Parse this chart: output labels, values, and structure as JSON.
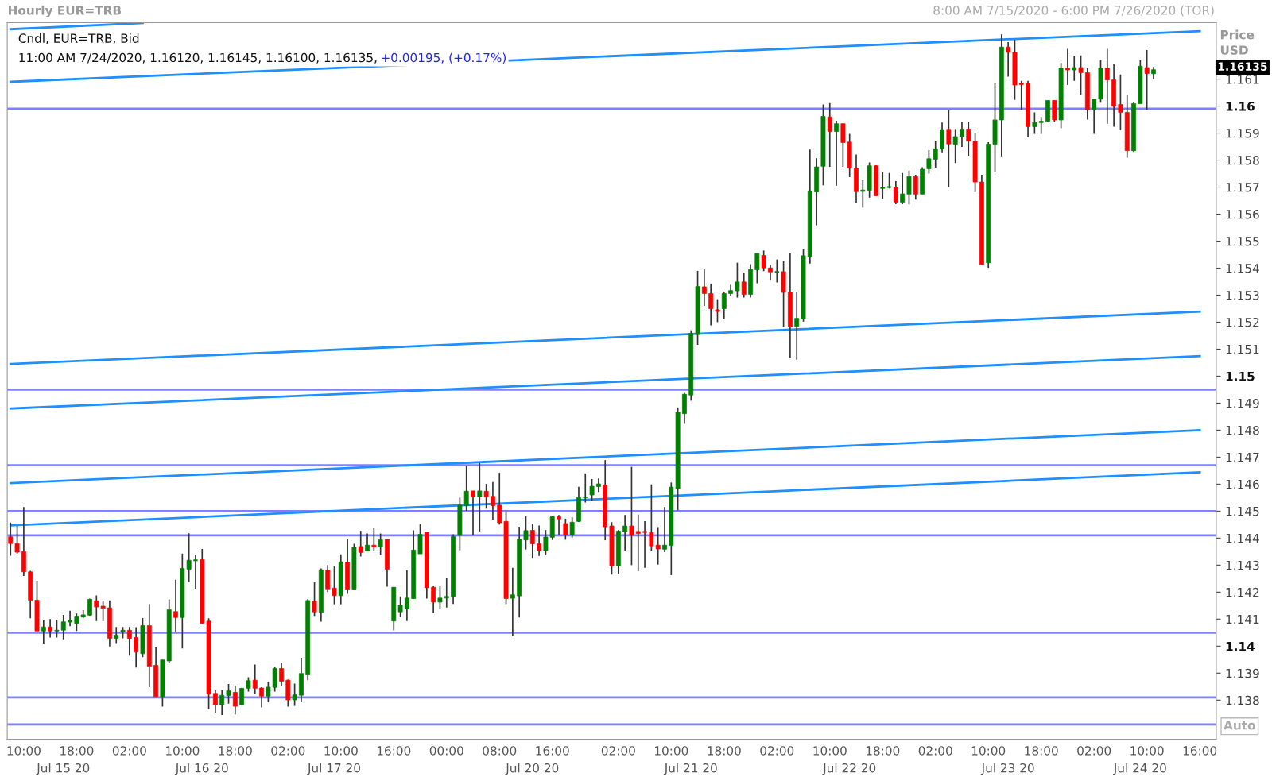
{
  "chart_data": {
    "type": "candlestick",
    "title": "Hourly EUR=TRB",
    "subtitle": "8:00 AM 7/15/2020 - 6:00 PM 7/26/2020 (TOR)",
    "ylabel": "Price\nUSD",
    "categories": [
      null,
      null,
      "10:00",
      null,
      null,
      null,
      null,
      null,
      "\nJul 15 20",
      null,
      "18:00",
      null,
      null,
      null,
      null,
      null,
      null,
      null,
      "02:00",
      null,
      null,
      null,
      null,
      null,
      null,
      null,
      "10:00",
      null,
      null,
      "\nJul 16 20",
      null,
      null,
      null,
      null,
      "18:00",
      null,
      null,
      null,
      null,
      null,
      null,
      null,
      "02:00",
      null,
      null,
      null,
      null,
      null,
      null,
      "\nJul 17 20",
      "10:00",
      null,
      null,
      null,
      null,
      null,
      null,
      null,
      "16:00",
      null,
      null,
      null,
      null,
      null,
      null,
      null,
      "00:00",
      null,
      null,
      null,
      null,
      null,
      null,
      null,
      "08:00",
      null,
      null,
      null,
      null,
      "\nJul 20 20",
      null,
      null,
      "16:00",
      null,
      null,
      null,
      null,
      null,
      null,
      null,
      null,
      null,
      "02:00",
      null,
      null,
      null,
      null,
      null,
      null,
      null,
      "10:00",
      null,
      null,
      "\nJul 21 20",
      null,
      null,
      null,
      null,
      "18:00",
      null,
      null,
      null,
      null,
      null,
      null,
      null,
      "02:00",
      null,
      null,
      null,
      null,
      null,
      null,
      null,
      "10:00",
      null,
      null,
      "\nJul 22 20",
      null,
      null,
      null,
      null,
      "18:00",
      null,
      null,
      null,
      null,
      null,
      null,
      null,
      "02:00",
      null,
      null,
      null,
      null,
      null,
      null,
      null,
      "10:00",
      null,
      null,
      "\nJul 23 20",
      null,
      null,
      null,
      null,
      "18:00",
      null,
      null,
      null,
      null,
      null,
      null,
      null,
      "02:00",
      null,
      null,
      null,
      null,
      null,
      null,
      "\nJul 24 20",
      "10:00",
      null,
      null,
      null,
      null,
      null,
      null,
      null,
      "16:00"
    ],
    "ohlc": [
      [
        1.14405,
        1.14458,
        1.14335,
        1.1438
      ],
      [
        1.1438,
        1.14446,
        1.14343,
        1.14348
      ],
      [
        1.1435,
        1.14515,
        1.1426,
        1.14275
      ],
      [
        1.14275,
        1.14279,
        1.14103,
        1.1417
      ],
      [
        1.1417,
        1.14242,
        1.14056,
        1.14056
      ],
      [
        1.14056,
        1.14095,
        1.1401,
        1.14071
      ],
      [
        1.14071,
        1.141,
        1.14032,
        1.14056
      ],
      [
        1.14056,
        1.14095,
        1.14032,
        1.14059
      ],
      [
        1.14059,
        1.14116,
        1.14025,
        1.1409
      ],
      [
        1.14089,
        1.14131,
        1.14074,
        1.14096
      ],
      [
        1.14084,
        1.14121,
        1.14056,
        1.14111
      ],
      [
        1.14108,
        1.14133,
        1.14103,
        1.14116
      ],
      [
        1.14115,
        1.14176,
        1.14113,
        1.14173
      ],
      [
        1.14168,
        1.14188,
        1.14093,
        1.14145
      ],
      [
        1.14148,
        1.14168,
        1.14093,
        1.1414
      ],
      [
        1.14142,
        1.14169,
        1.13999,
        1.14029
      ],
      [
        1.14029,
        1.14071,
        1.14011,
        1.14041
      ],
      [
        1.14054,
        1.14071,
        1.14029,
        1.14059
      ],
      [
        1.14059,
        1.14071,
        1.13965,
        1.14029
      ],
      [
        1.14032,
        1.1407,
        1.13921,
        1.13978
      ],
      [
        1.13972,
        1.14104,
        1.13959,
        1.14076
      ],
      [
        1.14076,
        1.14156,
        1.13848,
        1.13926
      ],
      [
        1.13929,
        1.13998,
        1.13813,
        1.13813
      ],
      [
        1.13813,
        1.13949,
        1.13776,
        1.13949
      ],
      [
        1.13945,
        1.14173,
        1.13937,
        1.14135
      ],
      [
        1.14128,
        1.14246,
        1.14051,
        1.14106
      ],
      [
        1.14106,
        1.14343,
        1.13991,
        1.14288
      ],
      [
        1.14285,
        1.14418,
        1.14238,
        1.14318
      ],
      [
        1.14318,
        1.14338,
        1.14213,
        1.14318
      ],
      [
        1.1432,
        1.1436,
        1.1408,
        1.14085
      ],
      [
        1.14093,
        1.14103,
        1.13766,
        1.13822
      ],
      [
        1.13825,
        1.13836,
        1.13753,
        1.13783
      ],
      [
        1.13783,
        1.13836,
        1.13745,
        1.13818
      ],
      [
        1.13817,
        1.1386,
        1.13787,
        1.13835
      ],
      [
        1.13829,
        1.13854,
        1.13747,
        1.13777
      ],
      [
        1.13782,
        1.13844,
        1.13782,
        1.13844
      ],
      [
        1.13844,
        1.13885,
        1.13832,
        1.13872
      ],
      [
        1.13874,
        1.13932,
        1.13824,
        1.13844
      ],
      [
        1.13845,
        1.13848,
        1.13773,
        1.13815
      ],
      [
        1.13815,
        1.13868,
        1.13793,
        1.13848
      ],
      [
        1.13847,
        1.13922,
        1.13832,
        1.13917
      ],
      [
        1.13917,
        1.13938,
        1.13853,
        1.1387
      ],
      [
        1.13874,
        1.13876,
        1.13776,
        1.13801
      ],
      [
        1.13801,
        1.13861,
        1.13779,
        1.1382
      ],
      [
        1.13818,
        1.13957,
        1.13792,
        1.13899
      ],
      [
        1.13896,
        1.14174,
        1.13874,
        1.14169
      ],
      [
        1.14167,
        1.14237,
        1.14112,
        1.14127
      ],
      [
        1.14126,
        1.14288,
        1.14091,
        1.14283
      ],
      [
        1.14282,
        1.143,
        1.142,
        1.14212
      ],
      [
        1.14215,
        1.14295,
        1.14155,
        1.14187
      ],
      [
        1.14187,
        1.1434,
        1.14155,
        1.14312
      ],
      [
        1.14311,
        1.14396,
        1.14194,
        1.14211
      ],
      [
        1.14211,
        1.14379,
        1.14211,
        1.14366
      ],
      [
        1.14369,
        1.14427,
        1.14332,
        1.14347
      ],
      [
        1.14352,
        1.14417,
        1.14352,
        1.14374
      ],
      [
        1.14374,
        1.14437,
        1.14352,
        1.14367
      ],
      [
        1.14367,
        1.14417,
        1.14337,
        1.14394
      ],
      [
        1.14395,
        1.14395,
        1.1422,
        1.14285
      ],
      [
        1.14093,
        1.14218,
        1.14058,
        1.14218
      ],
      [
        1.14127,
        1.14184,
        1.14107,
        1.14152
      ],
      [
        1.14138,
        1.14281,
        1.14093,
        1.14178
      ],
      [
        1.14176,
        1.14429,
        1.14176,
        1.14356
      ],
      [
        1.14342,
        1.14452,
        1.14342,
        1.14414
      ],
      [
        1.14422,
        1.14424,
        1.14176,
        1.14216
      ],
      [
        1.14218,
        1.14224,
        1.14123,
        1.14163
      ],
      [
        1.14163,
        1.14224,
        1.14136,
        1.14178
      ],
      [
        1.14178,
        1.14251,
        1.14143,
        1.14184
      ],
      [
        1.14182,
        1.14414,
        1.14156,
        1.14406
      ],
      [
        1.1441,
        1.1455,
        1.14355,
        1.14522
      ],
      [
        1.14521,
        1.14669,
        1.14501,
        1.14574
      ],
      [
        1.14575,
        1.14575,
        1.1441,
        1.14553
      ],
      [
        1.14553,
        1.14678,
        1.14425,
        1.14575
      ],
      [
        1.14574,
        1.14601,
        1.14509,
        1.14552
      ],
      [
        1.14555,
        1.14608,
        1.14468,
        1.1452
      ],
      [
        1.14522,
        1.14642,
        1.1445,
        1.14457
      ],
      [
        1.14462,
        1.14499,
        1.14156,
        1.14176
      ],
      [
        1.14177,
        1.1429,
        1.14037,
        1.1419
      ],
      [
        1.14186,
        1.14442,
        1.14106,
        1.14396
      ],
      [
        1.14393,
        1.14481,
        1.14358,
        1.14428
      ],
      [
        1.14429,
        1.14452,
        1.14327,
        1.14379
      ],
      [
        1.14379,
        1.14447,
        1.14334,
        1.14354
      ],
      [
        1.14354,
        1.1443,
        1.14337,
        1.14404
      ],
      [
        1.14403,
        1.14483,
        1.14393,
        1.14479
      ],
      [
        1.14479,
        1.14486,
        1.14413,
        1.14471
      ],
      [
        1.14454,
        1.14472,
        1.14394,
        1.14412
      ],
      [
        1.14412,
        1.14477,
        1.14402,
        1.14459
      ],
      [
        1.14462,
        1.1459,
        1.1446,
        1.1455
      ],
      [
        1.1455,
        1.1464,
        1.14532,
        1.14552
      ],
      [
        1.1456,
        1.14619,
        1.14538,
        1.14592
      ],
      [
        1.14591,
        1.14621,
        1.14571,
        1.14601
      ],
      [
        1.14597,
        1.14689,
        1.14392,
        1.14442
      ],
      [
        1.14445,
        1.14459,
        1.14265,
        1.14297
      ],
      [
        1.14297,
        1.1443,
        1.14268,
        1.14426
      ],
      [
        1.14424,
        1.14486,
        1.14353,
        1.14445
      ],
      [
        1.14445,
        1.14664,
        1.143,
        1.1441
      ],
      [
        1.14425,
        1.14487,
        1.14278,
        1.14417
      ],
      [
        1.14425,
        1.14463,
        1.1429,
        1.14421
      ],
      [
        1.14421,
        1.14599,
        1.14354,
        1.14371
      ],
      [
        1.14374,
        1.14441,
        1.14302,
        1.1436
      ],
      [
        1.14359,
        1.14515,
        1.14348,
        1.14374
      ],
      [
        1.14373,
        1.14606,
        1.14263,
        1.14589
      ],
      [
        1.14583,
        1.14884,
        1.14503,
        1.14866
      ],
      [
        1.14861,
        1.14938,
        1.14823,
        1.14933
      ],
      [
        1.1493,
        1.1517,
        1.14909,
        1.15158
      ],
      [
        1.15154,
        1.1539,
        1.15116,
        1.15332
      ],
      [
        1.15331,
        1.15396,
        1.1526,
        1.15306
      ],
      [
        1.15306,
        1.15343,
        1.15188,
        1.1525
      ],
      [
        1.15246,
        1.15285,
        1.152,
        1.15239
      ],
      [
        1.1525,
        1.15312,
        1.15213,
        1.15306
      ],
      [
        1.15306,
        1.15338,
        1.15297,
        1.15317
      ],
      [
        1.15316,
        1.1542,
        1.15291,
        1.15349
      ],
      [
        1.15349,
        1.15383,
        1.15291,
        1.15303
      ],
      [
        1.15303,
        1.15415,
        1.15291,
        1.15395
      ],
      [
        1.15394,
        1.15454,
        1.15344,
        1.15454
      ],
      [
        1.15447,
        1.15465,
        1.15389,
        1.15401
      ],
      [
        1.15401,
        1.15413,
        1.15355,
        1.15386
      ],
      [
        1.15386,
        1.15432,
        1.15347,
        1.15386
      ],
      [
        1.15387,
        1.15425,
        1.15183,
        1.1531
      ],
      [
        1.15311,
        1.15455,
        1.15068,
        1.15184
      ],
      [
        1.15185,
        1.15312,
        1.15061,
        1.15214
      ],
      [
        1.15212,
        1.15469,
        1.15202,
        1.15446
      ],
      [
        1.15441,
        1.15839,
        1.15417,
        1.15686
      ],
      [
        1.15682,
        1.15807,
        1.15559,
        1.15775
      ],
      [
        1.15777,
        1.16006,
        1.15707,
        1.15962
      ],
      [
        1.1596,
        1.16011,
        1.15775,
        1.15906
      ],
      [
        1.15906,
        1.15946,
        1.15705,
        1.15935
      ],
      [
        1.15935,
        1.15935,
        1.15775,
        1.15865
      ],
      [
        1.15867,
        1.15897,
        1.15737,
        1.1577
      ],
      [
        1.15771,
        1.15821,
        1.15643,
        1.15683
      ],
      [
        1.15684,
        1.15727,
        1.15624,
        1.15689
      ],
      [
        1.15688,
        1.15791,
        1.15661,
        1.15779
      ],
      [
        1.15779,
        1.15781,
        1.15668,
        1.15668
      ],
      [
        1.15695,
        1.15755,
        1.15657,
        1.15699
      ],
      [
        1.157,
        1.15752,
        1.15695,
        1.157
      ],
      [
        1.157,
        1.15722,
        1.15637,
        1.15644
      ],
      [
        1.15644,
        1.15752,
        1.15637,
        1.15675
      ],
      [
        1.15674,
        1.15761,
        1.15636,
        1.15739
      ],
      [
        1.15739,
        1.15746,
        1.15654,
        1.15674
      ],
      [
        1.15674,
        1.15774,
        1.15674,
        1.15766
      ],
      [
        1.15768,
        1.15837,
        1.1575,
        1.15805
      ],
      [
        1.15803,
        1.15872,
        1.15772,
        1.15842
      ],
      [
        1.15841,
        1.15939,
        1.15829,
        1.15913
      ],
      [
        1.15914,
        1.15985,
        1.157,
        1.1586
      ],
      [
        1.15859,
        1.15915,
        1.15789,
        1.15887
      ],
      [
        1.15887,
        1.15942,
        1.15849,
        1.15915
      ],
      [
        1.15915,
        1.15942,
        1.15816,
        1.1587
      ],
      [
        1.15869,
        1.15901,
        1.15682,
        1.15719
      ],
      [
        1.15719,
        1.15746,
        1.15412,
        1.15414
      ],
      [
        1.1542,
        1.15866,
        1.15401,
        1.15859
      ],
      [
        1.15859,
        1.16085,
        1.15755,
        1.15949
      ],
      [
        1.15949,
        1.16266,
        1.15814,
        1.16219
      ],
      [
        1.16219,
        1.16237,
        1.16109,
        1.16199
      ],
      [
        1.16199,
        1.16246,
        1.16023,
        1.16078
      ],
      [
        1.16085,
        1.16094,
        1.15987,
        1.1608
      ],
      [
        1.16085,
        1.16094,
        1.15885,
        1.15924
      ],
      [
        1.15924,
        1.15977,
        1.15897,
        1.15939
      ],
      [
        1.15939,
        1.1596,
        1.15897,
        1.15944
      ],
      [
        1.15944,
        1.16021,
        1.15941,
        1.16021
      ],
      [
        1.16021,
        1.16021,
        1.15942,
        1.15949
      ],
      [
        1.15949,
        1.1616,
        1.15918,
        1.16141
      ],
      [
        1.16141,
        1.16212,
        1.16078,
        1.16134
      ],
      [
        1.16134,
        1.16186,
        1.16094,
        1.16143
      ],
      [
        1.16143,
        1.16188,
        1.16043,
        1.16124
      ],
      [
        1.16124,
        1.16141,
        1.1595,
        1.15987
      ],
      [
        1.15987,
        1.16026,
        1.15897,
        1.16026
      ],
      [
        1.16026,
        1.1617,
        1.16013,
        1.16141
      ],
      [
        1.16141,
        1.16212,
        1.15935,
        1.16097
      ],
      [
        1.16097,
        1.16155,
        1.15924,
        1.15999
      ],
      [
        1.16006,
        1.16117,
        1.15911,
        1.15977
      ],
      [
        1.15977,
        1.16041,
        1.15809,
        1.15835
      ],
      [
        1.15835,
        1.16016,
        1.1583,
        1.16009
      ],
      [
        1.16009,
        1.1617,
        1.16009,
        1.16148
      ],
      [
        1.16143,
        1.16208,
        1.15987,
        1.16121
      ],
      [
        1.1612,
        1.16145,
        1.161,
        1.16135
      ],
      null,
      null,
      null,
      null,
      null,
      null,
      null
    ],
    "series": [
      {
        "type": "line",
        "color": "#1e8fff",
        "values": [
          1.16285,
          null,
          null,
          null,
          null,
          null,
          null,
          null,
          null,
          null,
          null,
          null,
          null,
          null,
          null,
          null,
          null,
          null,
          null,
          null,
          1.16308,
          null,
          null,
          null,
          null,
          null,
          null,
          null,
          null,
          null,
          null,
          null,
          null,
          null,
          null,
          null,
          null,
          null,
          null,
          null,
          null,
          null,
          null,
          null,
          null,
          null,
          null,
          null,
          null,
          null,
          null,
          null,
          null,
          null,
          null,
          null,
          null,
          null,
          null,
          null,
          null,
          null,
          null,
          null,
          null,
          null,
          null,
          null,
          null,
          null,
          null,
          null,
          null,
          null,
          null,
          null,
          null,
          null,
          null,
          null,
          null,
          null,
          null,
          null,
          null,
          null,
          null,
          null,
          null,
          null,
          null,
          null,
          null,
          null,
          null,
          null,
          null,
          null,
          null,
          null,
          null,
          null,
          null,
          null,
          null,
          null,
          null,
          null,
          null,
          null,
          null,
          null,
          null,
          null,
          null,
          null,
          null,
          null,
          null,
          null,
          null,
          null,
          null,
          null,
          null,
          null,
          null,
          null,
          null,
          null,
          null,
          null,
          null,
          null,
          null,
          null,
          null,
          null,
          null,
          null,
          null,
          null,
          null,
          null,
          null,
          null,
          null,
          null,
          null,
          null,
          null,
          null,
          null,
          null,
          null,
          null,
          null,
          null,
          null,
          null,
          null,
          null,
          null,
          null,
          null,
          null,
          null,
          null,
          null,
          null,
          null,
          null,
          null,
          null,
          null,
          null,
          null,
          null,
          null,
          null,
          null
        ]
      },
      {
        "type": "line",
        "color": "#1e8fff",
        "values": [
          1.1609,
          null,
          null,
          null,
          null,
          null,
          null,
          null,
          null,
          null,
          null,
          null,
          null,
          null,
          null,
          null,
          null,
          null,
          null,
          null,
          null,
          null,
          null,
          null,
          null,
          null,
          null,
          null,
          null,
          null,
          null,
          null,
          null,
          null,
          null,
          null,
          null,
          null,
          null,
          null,
          null,
          null,
          null,
          null,
          null,
          null,
          null,
          null,
          null,
          null,
          null,
          null,
          null,
          null,
          null,
          null,
          null,
          null,
          null,
          null,
          null,
          null,
          null,
          null,
          null,
          null,
          null,
          null,
          null,
          null,
          null,
          null,
          null,
          null,
          null,
          null,
          null,
          null,
          null,
          null,
          null,
          null,
          null,
          null,
          null,
          null,
          null,
          null,
          null,
          null,
          null,
          null,
          null,
          null,
          null,
          null,
          null,
          null,
          null,
          null,
          null,
          null,
          null,
          null,
          null,
          null,
          null,
          null,
          null,
          null,
          null,
          null,
          null,
          null,
          null,
          null,
          null,
          null,
          null,
          null,
          null,
          null,
          null,
          null,
          null,
          null,
          null,
          null,
          null,
          null,
          null,
          null,
          null,
          null,
          null,
          null,
          null,
          null,
          null,
          null,
          null,
          null,
          null,
          null,
          null,
          null,
          null,
          null,
          null,
          null,
          null,
          null,
          null,
          null,
          null,
          null,
          null,
          null,
          null,
          null,
          null,
          null,
          null,
          null,
          null,
          null,
          null,
          null,
          null,
          null,
          null,
          null,
          null,
          null,
          null,
          null,
          null,
          null,
          null,
          null,
          1.16278
        ]
      },
      {
        "type": "line",
        "color": "#1e8fff",
        "values": [
          1.15045,
          null,
          null,
          null,
          null,
          null,
          null,
          null,
          null,
          null,
          null,
          null,
          null,
          null,
          null,
          null,
          null,
          null,
          null,
          null,
          null,
          null,
          null,
          null,
          null,
          null,
          null,
          null,
          null,
          null,
          null,
          null,
          null,
          null,
          null,
          null,
          null,
          null,
          null,
          null,
          null,
          null,
          null,
          null,
          null,
          null,
          null,
          null,
          null,
          null,
          null,
          null,
          null,
          null,
          null,
          null,
          null,
          null,
          null,
          null,
          null,
          null,
          null,
          null,
          null,
          null,
          null,
          null,
          null,
          null,
          null,
          null,
          null,
          null,
          null,
          null,
          null,
          null,
          null,
          null,
          null,
          null,
          null,
          null,
          null,
          null,
          null,
          null,
          null,
          null,
          null,
          null,
          null,
          null,
          null,
          null,
          null,
          null,
          null,
          null,
          null,
          null,
          null,
          null,
          null,
          null,
          null,
          null,
          null,
          null,
          null,
          null,
          null,
          null,
          null,
          null,
          null,
          null,
          null,
          null,
          null,
          null,
          null,
          null,
          null,
          null,
          null,
          null,
          null,
          null,
          null,
          null,
          null,
          null,
          null,
          null,
          null,
          null,
          null,
          null,
          null,
          null,
          null,
          null,
          null,
          null,
          null,
          null,
          null,
          null,
          null,
          null,
          null,
          null,
          null,
          null,
          null,
          null,
          null,
          null,
          null,
          null,
          null,
          null,
          null,
          null,
          null,
          null,
          null,
          null,
          null,
          null,
          null,
          null,
          null,
          null,
          null,
          null,
          null,
          null,
          1.15239
        ]
      },
      {
        "type": "line",
        "color": "#1e8fff",
        "values": [
          1.1488,
          null,
          null,
          null,
          null,
          null,
          null,
          null,
          null,
          null,
          null,
          null,
          null,
          null,
          null,
          null,
          null,
          null,
          null,
          null,
          null,
          null,
          null,
          null,
          null,
          null,
          null,
          null,
          null,
          null,
          null,
          null,
          null,
          null,
          null,
          null,
          null,
          null,
          null,
          null,
          null,
          null,
          null,
          null,
          null,
          null,
          null,
          null,
          null,
          null,
          null,
          null,
          null,
          null,
          null,
          null,
          null,
          null,
          null,
          null,
          null,
          null,
          null,
          null,
          null,
          null,
          null,
          null,
          null,
          null,
          null,
          null,
          null,
          null,
          null,
          null,
          null,
          null,
          null,
          null,
          null,
          null,
          null,
          null,
          null,
          null,
          null,
          null,
          null,
          null,
          null,
          null,
          null,
          null,
          null,
          null,
          null,
          null,
          null,
          null,
          null,
          null,
          null,
          null,
          null,
          null,
          null,
          null,
          null,
          null,
          null,
          null,
          null,
          null,
          null,
          null,
          null,
          null,
          null,
          null,
          null,
          null,
          null,
          null,
          null,
          null,
          null,
          null,
          null,
          null,
          null,
          null,
          null,
          null,
          null,
          null,
          null,
          null,
          null,
          null,
          null,
          null,
          null,
          null,
          null,
          null,
          null,
          null,
          null,
          null,
          null,
          null,
          null,
          null,
          null,
          null,
          null,
          null,
          null,
          null,
          null,
          null,
          null,
          null,
          null,
          null,
          null,
          null,
          null,
          null,
          null,
          null,
          null,
          null,
          null,
          null,
          null,
          null,
          null,
          null,
          1.15074
        ]
      },
      {
        "type": "line",
        "color": "#1e8fff",
        "values": [
          1.14604,
          null,
          null,
          null,
          null,
          null,
          null,
          null,
          null,
          null,
          null,
          null,
          null,
          null,
          null,
          null,
          null,
          null,
          null,
          null,
          null,
          null,
          null,
          null,
          null,
          null,
          null,
          null,
          null,
          null,
          null,
          null,
          null,
          null,
          null,
          null,
          null,
          null,
          null,
          null,
          null,
          null,
          null,
          null,
          null,
          null,
          null,
          null,
          null,
          null,
          null,
          null,
          null,
          null,
          null,
          null,
          null,
          null,
          null,
          null,
          null,
          null,
          null,
          null,
          null,
          null,
          null,
          null,
          null,
          null,
          null,
          null,
          null,
          null,
          null,
          null,
          null,
          null,
          null,
          null,
          null,
          null,
          null,
          null,
          null,
          null,
          null,
          null,
          null,
          null,
          null,
          null,
          null,
          null,
          null,
          null,
          null,
          null,
          null,
          null,
          null,
          null,
          null,
          null,
          null,
          null,
          null,
          null,
          null,
          null,
          null,
          null,
          null,
          null,
          null,
          null,
          null,
          null,
          null,
          null,
          null,
          null,
          null,
          null,
          null,
          null,
          null,
          null,
          null,
          null,
          null,
          null,
          null,
          null,
          null,
          null,
          null,
          null,
          null,
          null,
          null,
          null,
          null,
          null,
          null,
          null,
          null,
          null,
          null,
          null,
          null,
          null,
          null,
          null,
          null,
          null,
          null,
          null,
          null,
          null,
          null,
          null,
          null,
          null,
          null,
          null,
          null,
          null,
          null,
          null,
          null,
          null,
          null,
          null,
          null,
          null,
          null,
          null,
          null,
          null,
          1.148
        ]
      },
      {
        "type": "line",
        "color": "#1e8fff",
        "values": [
          1.14447,
          null,
          null,
          null,
          null,
          null,
          null,
          null,
          null,
          null,
          null,
          null,
          null,
          null,
          null,
          null,
          null,
          null,
          null,
          null,
          null,
          null,
          null,
          null,
          null,
          null,
          null,
          null,
          null,
          null,
          null,
          null,
          null,
          null,
          null,
          null,
          null,
          null,
          null,
          null,
          null,
          null,
          null,
          null,
          null,
          null,
          null,
          null,
          null,
          null,
          null,
          null,
          null,
          null,
          null,
          null,
          null,
          null,
          null,
          null,
          null,
          null,
          null,
          null,
          null,
          null,
          null,
          null,
          null,
          null,
          null,
          null,
          null,
          null,
          null,
          null,
          null,
          null,
          null,
          null,
          null,
          null,
          null,
          null,
          null,
          null,
          null,
          null,
          null,
          null,
          null,
          null,
          null,
          null,
          null,
          null,
          null,
          null,
          null,
          null,
          null,
          null,
          null,
          null,
          null,
          null,
          null,
          null,
          null,
          null,
          null,
          null,
          null,
          null,
          null,
          null,
          null,
          null,
          null,
          null,
          null,
          null,
          null,
          null,
          null,
          null,
          null,
          null,
          null,
          null,
          null,
          null,
          null,
          null,
          null,
          null,
          null,
          null,
          null,
          null,
          null,
          null,
          null,
          null,
          null,
          null,
          null,
          null,
          null,
          null,
          null,
          null,
          null,
          null,
          null,
          null,
          null,
          null,
          null,
          null,
          null,
          null,
          null,
          null,
          null,
          null,
          null,
          null,
          null,
          null,
          null,
          null,
          null,
          null,
          null,
          null,
          null,
          null,
          null,
          null,
          1.14644
        ]
      }
    ],
    "ref_lines": [
      {
        "axis": "y",
        "value": 1.1599,
        "color": "#8080ff"
      },
      {
        "axis": "y",
        "value": 1.1495,
        "color": "#8080ff"
      },
      {
        "axis": "y",
        "value": 1.1467,
        "color": "#8080ff"
      },
      {
        "axis": "y",
        "value": 1.145,
        "color": "#8080ff"
      },
      {
        "axis": "y",
        "value": 1.1441,
        "color": "#8080ff"
      },
      {
        "axis": "y",
        "value": 1.1405,
        "color": "#8080ff"
      },
      {
        "axis": "y",
        "value": 1.1381,
        "color": "#8080ff"
      },
      {
        "axis": "y",
        "value": 1.1371,
        "color": "#8080ff"
      }
    ],
    "ylim": [
      1.13655,
      1.16309
    ],
    "yticks": [
      1.138,
      1.139,
      1.14,
      1.141,
      1.142,
      1.143,
      1.144,
      1.145,
      1.146,
      1.147,
      1.148,
      1.149,
      1.15,
      1.151,
      1.152,
      1.153,
      1.154,
      1.155,
      1.156,
      1.157,
      1.158,
      1.159,
      1.16,
      1.161
    ],
    "grid": false,
    "annotations": [
      "Cndl, EUR=TRB, Bid",
      "11:00 AM 7/24/2020, 1.16120, 1.16145, 1.16100, 1.16135,",
      "+0.00195, (+0.17%)",
      "1.16135",
      "Auto"
    ]
  }
}
